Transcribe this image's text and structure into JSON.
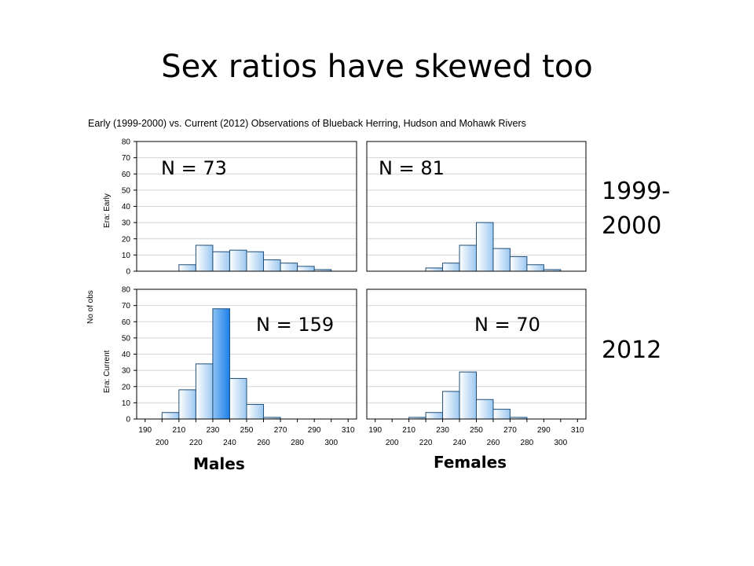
{
  "slide": {
    "title": "Sex ratios have skewed too",
    "era_labels": {
      "early": "1999-\n2000",
      "current": "2012"
    },
    "sex_labels": {
      "males": "Males",
      "females": "Females"
    }
  },
  "chart_data": {
    "type": "bar",
    "title": "Early (1999-2000) vs. Current (2012) Observations of Blueback Herring, Hudson and Mohawk Rivers",
    "ylabel": "No of obs",
    "row_labels": [
      "Era: Early",
      "Era: Current"
    ],
    "ylim": [
      0,
      80
    ],
    "y_ticks": [
      0,
      10,
      20,
      30,
      40,
      50,
      60,
      70,
      80
    ],
    "xlim": [
      185,
      315
    ],
    "x_ticks_top": [
      190,
      210,
      230,
      250,
      270,
      290,
      310
    ],
    "x_ticks_bottom": [
      200,
      220,
      240,
      260,
      280,
      300
    ],
    "bin_width": 10,
    "bin_starts": [
      200,
      210,
      220,
      230,
      240,
      250,
      260,
      270,
      280,
      290,
      300
    ],
    "grid": true,
    "panels": [
      {
        "row": "Era: Early",
        "column": "Males",
        "n_label": "N = 73",
        "values": [
          0,
          4,
          16,
          12,
          13,
          12,
          7,
          5,
          3,
          1,
          0
        ]
      },
      {
        "row": "Era: Early",
        "column": "Females",
        "n_label": "N = 81",
        "values": [
          0,
          0,
          2,
          5,
          16,
          30,
          14,
          9,
          4,
          1,
          0
        ]
      },
      {
        "row": "Era: Current",
        "column": "Males",
        "n_label": "N = 159",
        "values": [
          4,
          18,
          34,
          68,
          25,
          9,
          1,
          0,
          0,
          0,
          0
        ]
      },
      {
        "row": "Era: Current",
        "column": "Females",
        "n_label": "N = 70",
        "values": [
          0,
          1,
          4,
          17,
          29,
          12,
          6,
          1,
          0,
          0,
          0
        ]
      }
    ]
  }
}
